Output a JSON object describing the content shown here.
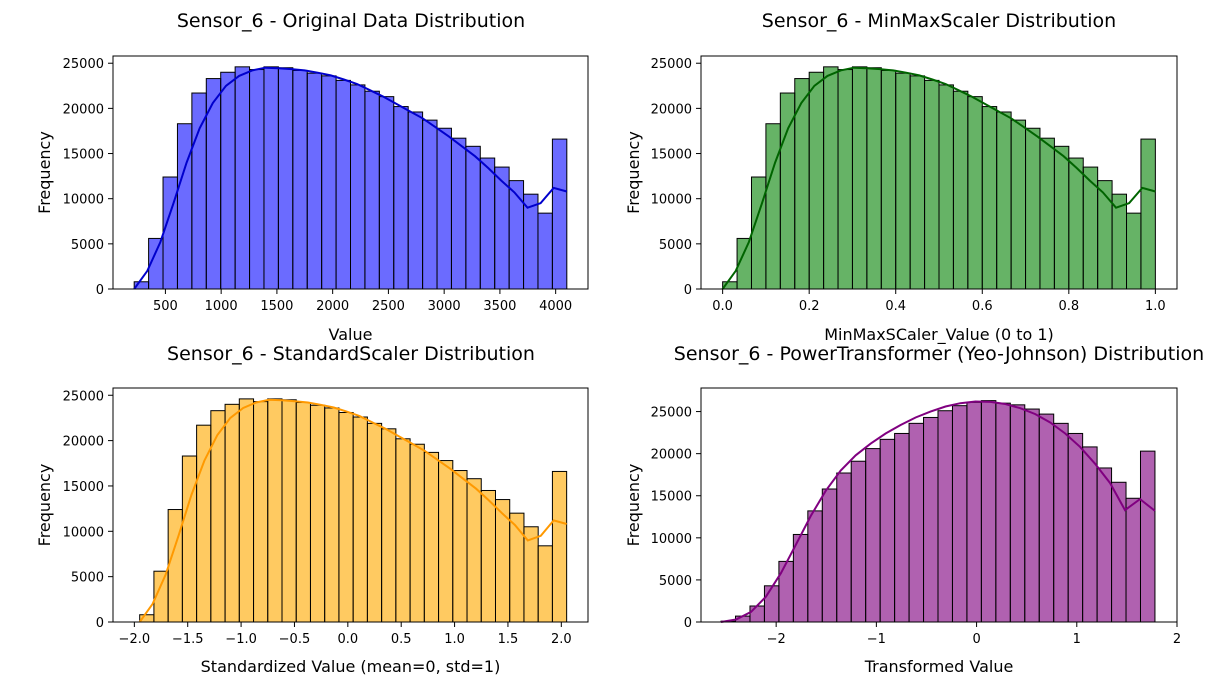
{
  "figure": {
    "background": "#ffffff",
    "bar_edge": "#000000"
  },
  "chart_data": [
    {
      "type": "bar",
      "title": "Sensor_6 - Original Data Distribution",
      "xlabel": "Value",
      "ylabel": "Frequency",
      "xlim": [
        30,
        4290
      ],
      "ylim": [
        0,
        25800
      ],
      "xticks": [
        500,
        1000,
        1500,
        2000,
        2500,
        3000,
        3500,
        4000
      ],
      "xtick_labels": [
        "500",
        "1000",
        "1500",
        "2000",
        "2500",
        "3000",
        "3500",
        "4000"
      ],
      "yticks": [
        0,
        5000,
        10000,
        15000,
        20000,
        25000
      ],
      "ytick_labels": [
        "0",
        "5000",
        "10000",
        "15000",
        "20000",
        "25000"
      ],
      "bin_start": 220,
      "bin_end": 4100,
      "values": [
        800,
        5600,
        12400,
        18300,
        21700,
        23300,
        24000,
        24600,
        24300,
        24600,
        24500,
        24200,
        23900,
        23600,
        23100,
        22600,
        21900,
        21300,
        20200,
        19600,
        18700,
        17800,
        16700,
        15800,
        14500,
        13500,
        12000,
        10500,
        8400,
        16600
      ],
      "kde": [
        0,
        2000,
        5200,
        9500,
        14000,
        17800,
        20600,
        22500,
        23600,
        24200,
        24500,
        24450,
        24350,
        24200,
        23950,
        23650,
        23200,
        22700,
        22000,
        21300,
        20500,
        19700,
        18900,
        17900,
        16900,
        15800,
        14700,
        13400,
        12000,
        10700,
        9000,
        9500,
        11200,
        10800
      ],
      "color": "#0000ff",
      "fill": "rgba(0,0,255,0.58)",
      "line": "#0000cc"
    },
    {
      "type": "bar",
      "title": "Sensor_6 - MinMaxScaler Distribution",
      "xlabel": "MinMaxSCaler_Value (0 to 1)",
      "ylabel": "Frequency",
      "xlim": [
        -0.05,
        1.05
      ],
      "ylim": [
        0,
        25800
      ],
      "xticks": [
        0.0,
        0.2,
        0.4,
        0.6,
        0.8,
        1.0
      ],
      "xtick_labels": [
        "0.0",
        "0.2",
        "0.4",
        "0.6",
        "0.8",
        "1.0"
      ],
      "yticks": [
        0,
        5000,
        10000,
        15000,
        20000,
        25000
      ],
      "ytick_labels": [
        "0",
        "5000",
        "10000",
        "15000",
        "20000",
        "25000"
      ],
      "bin_start": 0.0,
      "bin_end": 1.0,
      "values": [
        800,
        5600,
        12400,
        18300,
        21700,
        23300,
        24000,
        24600,
        24300,
        24600,
        24500,
        24200,
        23900,
        23600,
        23100,
        22600,
        21900,
        21300,
        20200,
        19600,
        18700,
        17800,
        16700,
        15800,
        14500,
        13500,
        12000,
        10500,
        8400,
        16600
      ],
      "kde": [
        0,
        2000,
        5200,
        9500,
        14000,
        17800,
        20600,
        22500,
        23600,
        24200,
        24500,
        24450,
        24350,
        24200,
        23950,
        23650,
        23200,
        22700,
        22000,
        21300,
        20500,
        19700,
        18900,
        17900,
        16900,
        15800,
        14700,
        13400,
        12000,
        10700,
        9000,
        9500,
        11200,
        10800
      ],
      "color": "#008000",
      "fill": "rgba(0,128,0,0.6)",
      "line": "#006400"
    },
    {
      "type": "bar",
      "title": "Sensor_6 - StandardScaler Distribution",
      "xlabel": "Standardized Value (mean=0, std=1)",
      "ylabel": "Frequency",
      "xlim": [
        -2.2,
        2.25
      ],
      "ylim": [
        0,
        25800
      ],
      "xticks": [
        -2.0,
        -1.5,
        -1.0,
        -0.5,
        0.0,
        0.5,
        1.0,
        1.5,
        2.0
      ],
      "xtick_labels": [
        "−2.0",
        "−1.5",
        "−1.0",
        "−0.5",
        "0.0",
        "0.5",
        "1.0",
        "1.5",
        "2.0"
      ],
      "yticks": [
        0,
        5000,
        10000,
        15000,
        20000,
        25000
      ],
      "ytick_labels": [
        "0",
        "5000",
        "10000",
        "15000",
        "20000",
        "25000"
      ],
      "bin_start": -1.95,
      "bin_end": 2.05,
      "values": [
        800,
        5600,
        12400,
        18300,
        21700,
        23300,
        24000,
        24600,
        24300,
        24600,
        24500,
        24200,
        23900,
        23600,
        23100,
        22600,
        21900,
        21300,
        20200,
        19600,
        18700,
        17800,
        16700,
        15800,
        14500,
        13500,
        12000,
        10500,
        8400,
        16600
      ],
      "kde": [
        0,
        2000,
        5200,
        9500,
        14000,
        17800,
        20600,
        22500,
        23600,
        24200,
        24500,
        24450,
        24350,
        24200,
        23950,
        23650,
        23200,
        22700,
        22000,
        21300,
        20500,
        19700,
        18900,
        17900,
        16900,
        15800,
        14700,
        13400,
        12000,
        10700,
        9000,
        9500,
        11200,
        10800
      ],
      "color": "#ffa500",
      "fill": "rgba(255,170,0,0.62)",
      "line": "#ff9900"
    },
    {
      "type": "bar",
      "title": "Sensor_6 - PowerTransformer (Yeo-Johnson) Distribution",
      "xlabel": "Transformed Value",
      "ylabel": "Frequency",
      "xlim": [
        -2.75,
        2.0
      ],
      "ylim": [
        0,
        27800
      ],
      "xticks": [
        -2,
        -1,
        0,
        1,
        2
      ],
      "xtick_labels": [
        "−2",
        "−1",
        "0",
        "1",
        "2"
      ],
      "yticks": [
        0,
        5000,
        10000,
        15000,
        20000,
        25000
      ],
      "ytick_labels": [
        "0",
        "5000",
        "10000",
        "15000",
        "20000",
        "25000"
      ],
      "bin_start": -2.55,
      "bin_end": 1.78,
      "values": [
        100,
        700,
        1900,
        4300,
        7200,
        10400,
        13200,
        15800,
        17700,
        19100,
        20600,
        21700,
        22400,
        23600,
        24300,
        25100,
        25700,
        26100,
        26300,
        26000,
        25800,
        25300,
        24700,
        23600,
        22400,
        20800,
        18300,
        16600,
        14700,
        20300
      ],
      "kde": [
        0,
        300,
        1200,
        3000,
        5800,
        9200,
        12600,
        15600,
        18000,
        19800,
        21200,
        22400,
        23400,
        24300,
        25000,
        25600,
        26000,
        26200,
        26150,
        25900,
        25400,
        24700,
        23700,
        22400,
        20800,
        18800,
        16500,
        13300,
        14600,
        13200
      ],
      "color": "#800080",
      "fill": "rgba(128,0,128,0.62)",
      "line": "#800080"
    }
  ]
}
